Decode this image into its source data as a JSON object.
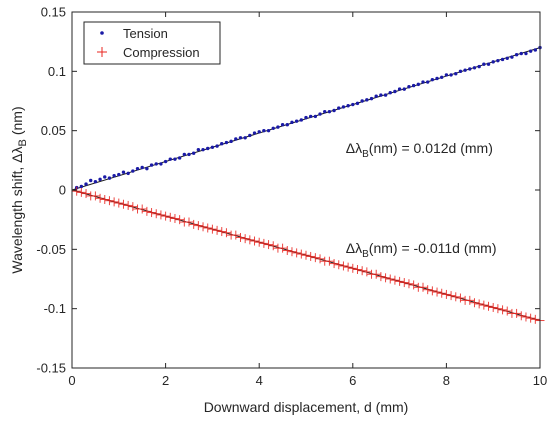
{
  "chart_data": {
    "type": "scatter",
    "xlabel": "Downward displacement, d (mm)",
    "ylabel": "Wavelength shift, Δλ",
    "ylabel_sub": "B",
    "ylabel_unit": "(nm)",
    "xlim": [
      0,
      10
    ],
    "ylim": [
      -0.15,
      0.15
    ],
    "xticks": [
      0,
      2,
      4,
      6,
      8,
      10
    ],
    "yticks": [
      -0.15,
      -0.1,
      -0.05,
      0,
      0.05,
      0.1,
      0.15
    ],
    "xtick_labels": [
      "0",
      "2",
      "4",
      "6",
      "8",
      "10"
    ],
    "ytick_labels": [
      "-0.15",
      "-0.1",
      "-0.05",
      "0",
      "0.05",
      "0.1",
      "0.15"
    ],
    "grid": false,
    "legend_position": "top-left",
    "series": [
      {
        "name": "Tension",
        "marker": "dot",
        "color": "#1a1aa6",
        "fit_slope": 0.012,
        "x": [
          0.1,
          0.2,
          0.3,
          0.4,
          0.5,
          0.6,
          0.7,
          0.8,
          0.9,
          1.0,
          1.1,
          1.2,
          1.3,
          1.4,
          1.5,
          1.6,
          1.7,
          1.8,
          1.9,
          2.0,
          2.1,
          2.2,
          2.3,
          2.4,
          2.5,
          2.6,
          2.7,
          2.8,
          2.9,
          3.0,
          3.1,
          3.2,
          3.3,
          3.4,
          3.5,
          3.6,
          3.7,
          3.8,
          3.9,
          4.0,
          4.1,
          4.2,
          4.3,
          4.4,
          4.5,
          4.6,
          4.7,
          4.8,
          4.9,
          5.0,
          5.1,
          5.2,
          5.3,
          5.4,
          5.5,
          5.6,
          5.7,
          5.8,
          5.9,
          6.0,
          6.1,
          6.2,
          6.3,
          6.4,
          6.5,
          6.6,
          6.7,
          6.8,
          6.9,
          7.0,
          7.1,
          7.2,
          7.3,
          7.4,
          7.5,
          7.6,
          7.7,
          7.8,
          7.9,
          8.0,
          8.1,
          8.2,
          8.3,
          8.4,
          8.5,
          8.6,
          8.7,
          8.8,
          8.9,
          9.0,
          9.1,
          9.2,
          9.3,
          9.4,
          9.5,
          9.6,
          9.7,
          9.8,
          9.9,
          10.0
        ],
        "y": [
          0.002,
          0.003,
          0.005,
          0.008,
          0.007,
          0.009,
          0.011,
          0.01,
          0.012,
          0.013,
          0.015,
          0.014,
          0.016,
          0.018,
          0.019,
          0.018,
          0.021,
          0.022,
          0.022,
          0.024,
          0.026,
          0.026,
          0.027,
          0.03,
          0.03,
          0.031,
          0.034,
          0.034,
          0.035,
          0.036,
          0.037,
          0.039,
          0.04,
          0.041,
          0.043,
          0.044,
          0.044,
          0.046,
          0.048,
          0.049,
          0.05,
          0.05,
          0.052,
          0.053,
          0.055,
          0.055,
          0.057,
          0.058,
          0.059,
          0.061,
          0.062,
          0.062,
          0.064,
          0.066,
          0.066,
          0.067,
          0.069,
          0.07,
          0.071,
          0.072,
          0.073,
          0.075,
          0.076,
          0.077,
          0.079,
          0.08,
          0.08,
          0.082,
          0.083,
          0.085,
          0.085,
          0.087,
          0.088,
          0.089,
          0.091,
          0.091,
          0.093,
          0.094,
          0.095,
          0.097,
          0.097,
          0.098,
          0.1,
          0.101,
          0.102,
          0.103,
          0.104,
          0.106,
          0.106,
          0.108,
          0.109,
          0.11,
          0.111,
          0.112,
          0.114,
          0.115,
          0.115,
          0.117,
          0.118,
          0.12
        ]
      },
      {
        "name": "Compression",
        "marker": "plus",
        "color": "#e8251f",
        "fit_slope": -0.011,
        "x": [
          0.1,
          0.2,
          0.3,
          0.4,
          0.5,
          0.6,
          0.7,
          0.8,
          0.9,
          1.0,
          1.1,
          1.2,
          1.3,
          1.4,
          1.5,
          1.6,
          1.7,
          1.8,
          1.9,
          2.0,
          2.1,
          2.2,
          2.3,
          2.4,
          2.5,
          2.6,
          2.7,
          2.8,
          2.9,
          3.0,
          3.1,
          3.2,
          3.3,
          3.4,
          3.5,
          3.6,
          3.7,
          3.8,
          3.9,
          4.0,
          4.1,
          4.2,
          4.3,
          4.4,
          4.5,
          4.6,
          4.7,
          4.8,
          4.9,
          5.0,
          5.1,
          5.2,
          5.3,
          5.4,
          5.5,
          5.6,
          5.7,
          5.8,
          5.9,
          6.0,
          6.1,
          6.2,
          6.3,
          6.4,
          6.5,
          6.6,
          6.7,
          6.8,
          6.9,
          7.0,
          7.1,
          7.2,
          7.3,
          7.4,
          7.5,
          7.6,
          7.7,
          7.8,
          7.9,
          8.0,
          8.1,
          8.2,
          8.3,
          8.4,
          8.5,
          8.6,
          8.7,
          8.8,
          8.9,
          9.0,
          9.1,
          9.2,
          9.3,
          9.4,
          9.5,
          9.6,
          9.7,
          9.8,
          9.9,
          10.0
        ],
        "y": [
          -0.001,
          -0.002,
          -0.003,
          -0.005,
          -0.005,
          -0.007,
          -0.008,
          -0.009,
          -0.01,
          -0.011,
          -0.012,
          -0.013,
          -0.014,
          -0.016,
          -0.016,
          -0.018,
          -0.019,
          -0.02,
          -0.021,
          -0.022,
          -0.023,
          -0.024,
          -0.025,
          -0.027,
          -0.027,
          -0.029,
          -0.03,
          -0.031,
          -0.032,
          -0.033,
          -0.034,
          -0.035,
          -0.036,
          -0.038,
          -0.038,
          -0.04,
          -0.041,
          -0.042,
          -0.043,
          -0.044,
          -0.045,
          -0.046,
          -0.047,
          -0.049,
          -0.049,
          -0.051,
          -0.052,
          -0.053,
          -0.054,
          -0.055,
          -0.056,
          -0.057,
          -0.058,
          -0.06,
          -0.06,
          -0.062,
          -0.063,
          -0.064,
          -0.065,
          -0.066,
          -0.067,
          -0.068,
          -0.069,
          -0.071,
          -0.071,
          -0.073,
          -0.074,
          -0.075,
          -0.076,
          -0.077,
          -0.078,
          -0.079,
          -0.08,
          -0.082,
          -0.082,
          -0.084,
          -0.085,
          -0.086,
          -0.087,
          -0.088,
          -0.089,
          -0.09,
          -0.091,
          -0.093,
          -0.093,
          -0.095,
          -0.096,
          -0.097,
          -0.098,
          -0.099,
          -0.1,
          -0.101,
          -0.102,
          -0.104,
          -0.104,
          -0.106,
          -0.107,
          -0.108,
          -0.109,
          -0.11
        ]
      }
    ],
    "annotations": [
      {
        "name": "tension-equation",
        "prefix": "Δλ",
        "sub": "B",
        "text": "(nm) = 0.012d (mm)",
        "x": 5.85,
        "y": 0.031
      },
      {
        "name": "compression-equation",
        "prefix": "Δλ",
        "sub": "B",
        "text": "(nm) = -0.011d (mm)",
        "x": 5.85,
        "y": -0.053
      }
    ]
  }
}
